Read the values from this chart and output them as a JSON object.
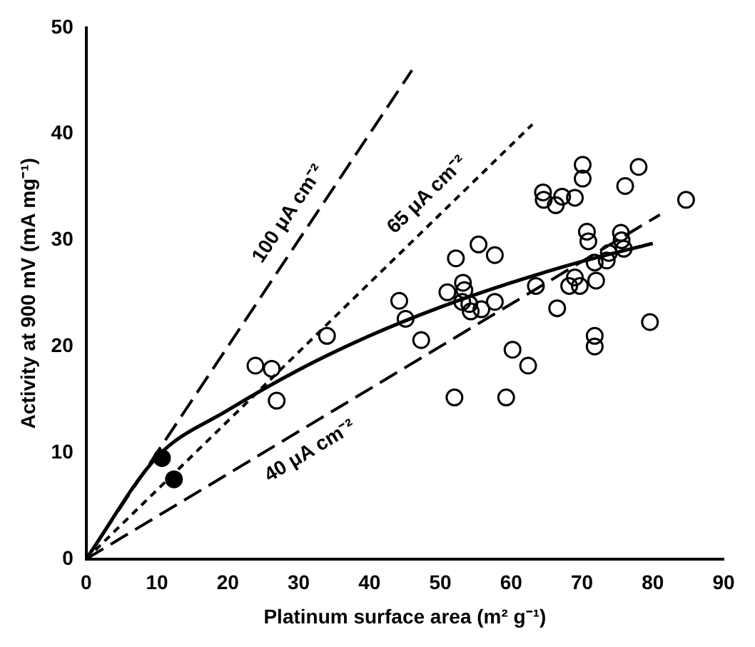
{
  "chart_data": {
    "type": "scatter",
    "xlabel": "Platinum surface area (m² g⁻¹)",
    "ylabel": "Activity at 900 mV (mA mg⁻¹)",
    "xlim": [
      0,
      90
    ],
    "ylim": [
      0,
      50
    ],
    "xticks": [
      0,
      10,
      20,
      30,
      40,
      50,
      60,
      70,
      80,
      90
    ],
    "yticks": [
      0,
      10,
      20,
      30,
      40,
      50
    ],
    "grid": false,
    "legend": false,
    "series": [
      {
        "type": "scatter",
        "marker": "circle",
        "color": "#000000",
        "x": [
          23.9,
          26.2,
          26.9,
          34,
          44.2,
          45.1,
          47.3,
          51.0,
          52.2,
          52.0,
          53.2,
          53.4,
          53.1,
          54.1,
          54.3,
          55.4,
          55.8,
          57.7,
          57.7,
          59.3,
          60.2,
          62.4,
          63.5,
          64.5,
          64.6,
          66.3,
          67.2,
          69.0,
          66.5,
          68.2,
          69.0,
          69.7,
          70.1,
          70.1,
          70.7,
          70.9,
          71.8,
          71.8,
          71.8,
          72.0,
          73.5,
          73.8,
          75.5,
          75.6,
          75.9,
          76.1,
          78.0,
          79.6,
          84.7
        ],
        "values": [
          18.2,
          17.9,
          14.9,
          21,
          24.3,
          22.6,
          20.6,
          25.1,
          28.3,
          15.2,
          26.0,
          25.3,
          24.2,
          24.0,
          23.3,
          29.6,
          23.5,
          28.6,
          24.2,
          15.2,
          19.7,
          18.2,
          25.7,
          34.5,
          33.8,
          33.3,
          34.1,
          34.0,
          23.6,
          25.7,
          26.5,
          25.7,
          37.1,
          35.8,
          30.8,
          29.9,
          21.0,
          20.0,
          27.9,
          26.2,
          28.1,
          28.8,
          30.7,
          30.0,
          29.2,
          35.1,
          36.9,
          22.3,
          33.8
        ]
      },
      {
        "type": "scatter",
        "marker": "circle",
        "color": "#000000",
        "x": [
          10.7,
          12.4
        ],
        "values": [
          9.5,
          7.5
        ]
      },
      {
        "type": "line",
        "marker": "none",
        "line_style": "solid",
        "color": "#000000",
        "x": [
          0,
          10,
          20,
          30,
          40,
          50,
          60,
          70,
          80
        ],
        "values": [
          0,
          9.6,
          14,
          17.8,
          21,
          23.7,
          26,
          28,
          29.7
        ]
      },
      {
        "type": "line",
        "marker": "none",
        "line_style": "dashed",
        "color": "#000000",
        "x": [
          0,
          46
        ],
        "values": [
          0,
          46
        ]
      },
      {
        "type": "line",
        "marker": "none",
        "line_style": "dotted",
        "color": "#000000",
        "x": [
          0,
          63
        ],
        "values": [
          0,
          40.9
        ]
      },
      {
        "type": "line",
        "marker": "none",
        "line_style": "dashed",
        "color": "#000000",
        "x": [
          0,
          81
        ],
        "values": [
          0,
          32.4
        ]
      }
    ],
    "annotations": [
      "100 μA cm⁻²",
      "65 μA cm⁻²",
      "40 μA cm⁻²"
    ]
  }
}
